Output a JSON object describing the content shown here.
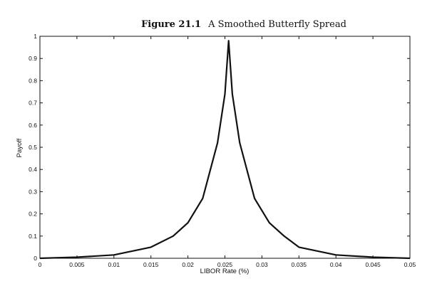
{
  "figure": {
    "number": "Figure 21.1",
    "caption": "A Smoothed Butterfly Spread"
  },
  "chart_data": {
    "type": "line",
    "title": "A Smoothed Butterfly Spread",
    "xlabel": "LIBOR Rate (%)",
    "ylabel": "Payoff",
    "xlim": [
      0,
      0.05
    ],
    "ylim": [
      0,
      1
    ],
    "x_ticks": [
      "0",
      "0.005",
      "0.01",
      "0.015",
      "0.02",
      "0.025",
      "0.03",
      "0.035",
      "0.04",
      "0.045",
      "0.05"
    ],
    "y_ticks": [
      "0",
      "0.1",
      "0.2",
      "0.3",
      "0.4",
      "0.5",
      "0.6",
      "0.7",
      "0.8",
      "0.9",
      "1"
    ],
    "grid": false,
    "series": [
      {
        "color": "#111111",
        "x": [
          0.0,
          0.005,
          0.01,
          0.015,
          0.018,
          0.02,
          0.022,
          0.024,
          0.025,
          0.0255,
          0.026,
          0.027,
          0.029,
          0.031,
          0.033,
          0.035,
          0.04,
          0.045,
          0.05
        ],
        "y": [
          0.0,
          0.005,
          0.015,
          0.05,
          0.1,
          0.16,
          0.27,
          0.52,
          0.74,
          0.98,
          0.74,
          0.52,
          0.27,
          0.16,
          0.1,
          0.05,
          0.015,
          0.005,
          0.0
        ]
      }
    ]
  }
}
